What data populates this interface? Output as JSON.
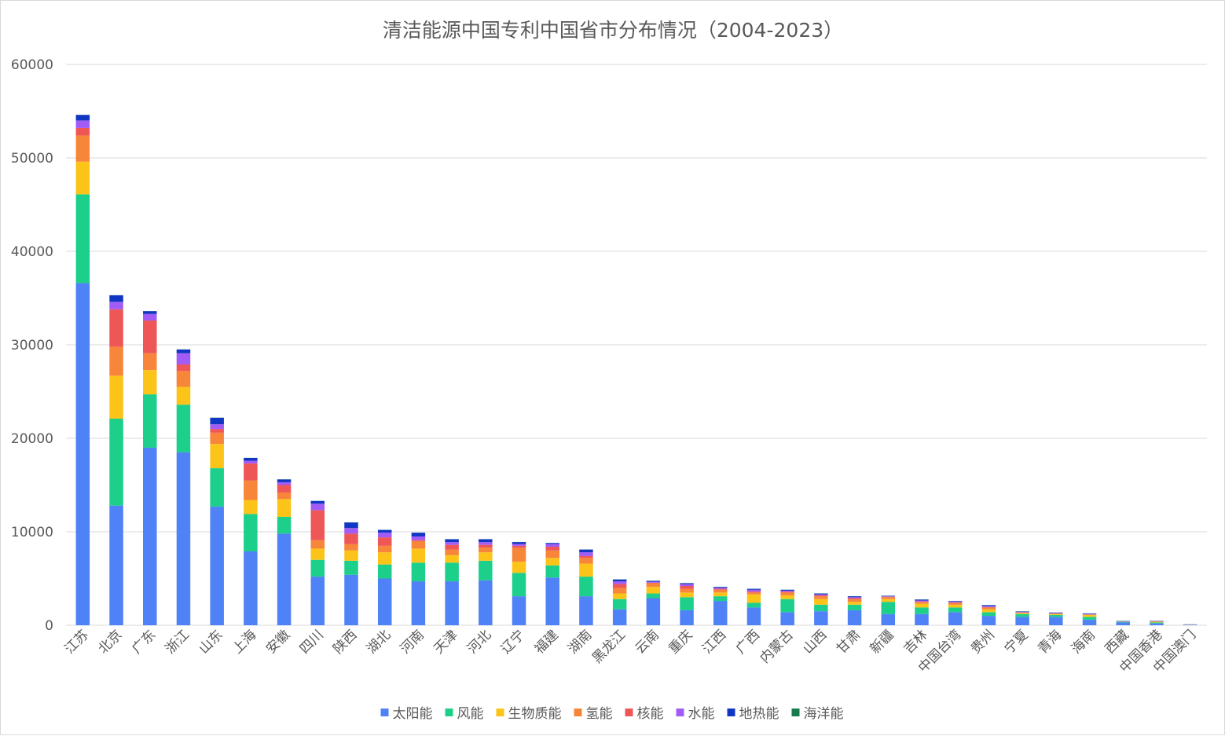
{
  "chart_data": {
    "type": "bar",
    "stacked": true,
    "title": "清洁能源中国专利中国省市分布情况（2004-2023）",
    "xlabel": "",
    "ylabel": "",
    "ylim": [
      0,
      60000
    ],
    "yticks": [
      "0",
      "10000",
      "20000",
      "30000",
      "40000",
      "50000",
      "60000"
    ],
    "grid": true,
    "legend_position": "bottom",
    "categories": [
      "江苏",
      "北京",
      "广东",
      "浙江",
      "山东",
      "上海",
      "安徽",
      "四川",
      "陕西",
      "湖北",
      "河南",
      "天津",
      "河北",
      "辽宁",
      "福建",
      "湖南",
      "黑龙江",
      "云南",
      "重庆",
      "江西",
      "广西",
      "内蒙古",
      "山西",
      "甘肃",
      "新疆",
      "吉林",
      "中国台湾",
      "贵州",
      "宁夏",
      "青海",
      "海南",
      "西藏",
      "中国香港",
      "中国澳门"
    ],
    "series": [
      {
        "name": "太阳能",
        "color": "#4f81f7",
        "values": [
          36600,
          12800,
          19000,
          18500,
          12700,
          7900,
          9800,
          5200,
          5400,
          5000,
          4700,
          4700,
          4800,
          3100,
          5100,
          3100,
          1700,
          2900,
          1600,
          2600,
          1900,
          1400,
          1500,
          1600,
          1200,
          1200,
          1400,
          1000,
          900,
          900,
          600,
          300,
          200,
          50
        ]
      },
      {
        "name": "风能",
        "color": "#1ccf8b",
        "values": [
          9500,
          9300,
          5700,
          5100,
          4100,
          4000,
          1800,
          1800,
          1500,
          1500,
          2000,
          2000,
          2100,
          2500,
          1300,
          2100,
          1100,
          500,
          1400,
          500,
          500,
          1400,
          700,
          600,
          1300,
          700,
          500,
          400,
          300,
          200,
          300,
          50,
          100,
          10
        ]
      },
      {
        "name": "生物质能",
        "color": "#fcc419",
        "values": [
          3500,
          4600,
          2600,
          1900,
          2600,
          1500,
          1900,
          1200,
          1100,
          1300,
          1500,
          800,
          900,
          1200,
          800,
          1400,
          600,
          700,
          500,
          400,
          900,
          400,
          600,
          300,
          300,
          400,
          300,
          300,
          100,
          100,
          200,
          20,
          50,
          10
        ]
      },
      {
        "name": "氢能",
        "color": "#f7853a",
        "values": [
          2800,
          3100,
          1800,
          1700,
          1200,
          2100,
          700,
          900,
          700,
          700,
          800,
          600,
          500,
          1500,
          800,
          600,
          600,
          400,
          400,
          300,
          200,
          300,
          300,
          300,
          200,
          200,
          200,
          200,
          50,
          50,
          50,
          10,
          50,
          10
        ]
      },
      {
        "name": "核能",
        "color": "#ef5656",
        "values": [
          800,
          4000,
          3500,
          700,
          400,
          1800,
          800,
          3200,
          1100,
          900,
          100,
          500,
          300,
          200,
          400,
          200,
          400,
          50,
          300,
          100,
          100,
          100,
          100,
          100,
          50,
          50,
          50,
          50,
          20,
          10,
          10,
          5,
          20,
          5
        ]
      },
      {
        "name": "水能",
        "color": "#a25cf5",
        "values": [
          800,
          800,
          700,
          1200,
          500,
          300,
          300,
          700,
          600,
          500,
          400,
          300,
          300,
          200,
          300,
          400,
          300,
          100,
          200,
          100,
          200,
          100,
          100,
          100,
          50,
          100,
          100,
          100,
          50,
          50,
          50,
          20,
          20,
          10
        ]
      },
      {
        "name": "地热能",
        "color": "#1136c4",
        "values": [
          600,
          700,
          300,
          400,
          700,
          300,
          300,
          300,
          600,
          300,
          400,
          300,
          300,
          200,
          100,
          300,
          200,
          100,
          100,
          100,
          100,
          100,
          100,
          100,
          50,
          100,
          50,
          100,
          50,
          50,
          50,
          50,
          30,
          5
        ]
      },
      {
        "name": "海洋能",
        "color": "#1a7a4f",
        "values": [
          10,
          10,
          10,
          10,
          10,
          10,
          10,
          10,
          10,
          10,
          10,
          10,
          10,
          10,
          10,
          10,
          10,
          10,
          10,
          10,
          10,
          10,
          10,
          10,
          10,
          10,
          10,
          10,
          10,
          10,
          10,
          10,
          10,
          5
        ]
      }
    ]
  }
}
